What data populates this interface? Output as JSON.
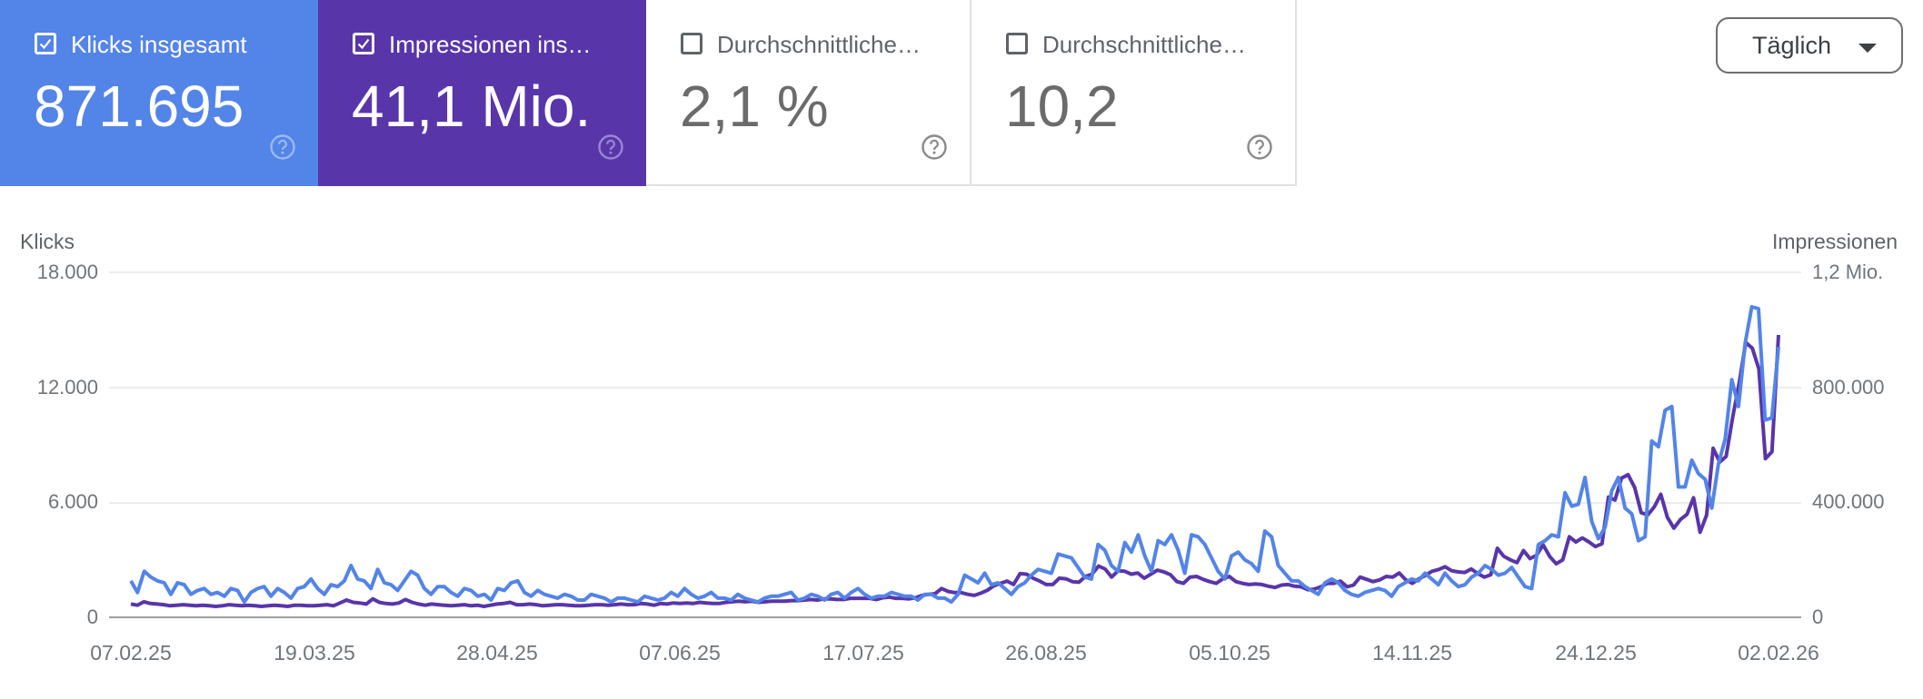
{
  "cards": [
    {
      "label": "Klicks insgesamt",
      "value": "871.695",
      "checked": true,
      "color": "#5384e8",
      "help_icon": "help-circle-icon"
    },
    {
      "label": "Impressionen ins…",
      "value": "41,1 Mio.",
      "checked": true,
      "color": "#5935aa",
      "help_icon": "help-circle-icon"
    },
    {
      "label": "Durchschnittliche…",
      "value": "2,1 %",
      "checked": false,
      "color": "#ffffff",
      "help_icon": "help-circle-icon"
    },
    {
      "label": "Durchschnittliche…",
      "value": "10,2",
      "checked": false,
      "color": "#ffffff",
      "help_icon": "help-circle-icon"
    }
  ],
  "granularity_dropdown": {
    "selected": "Täglich",
    "icon": "caret-down-icon"
  },
  "chart_data": {
    "type": "line",
    "title": "",
    "xlabel": "",
    "ylabel": "Klicks",
    "ylabel_right": "Impressionen",
    "ylim": [
      0,
      18000
    ],
    "ylim_right": [
      0,
      1200000
    ],
    "yticks": [
      "0",
      "6.000",
      "12.000",
      "18.000"
    ],
    "yticks_right": [
      "0",
      "400.000",
      "800.000",
      "1,2 Mio."
    ],
    "x_tick_labels": [
      "07.02.25",
      "19.03.25",
      "28.04.25",
      "07.06.25",
      "17.07.25",
      "26.08.25",
      "05.10.25",
      "14.11.25",
      "24.12.25",
      "02.02.26"
    ],
    "grid": true,
    "legend": "cards above chart",
    "series": [
      {
        "name": "Klicks",
        "axis": "left",
        "color": "#5384e8",
        "values": [
          1900,
          1300,
          2400,
          2100,
          1900,
          1800,
          1200,
          1800,
          1700,
          1200,
          1400,
          1500,
          1200,
          1300,
          1100,
          1500,
          1400,
          800,
          1300,
          1500,
          1600,
          1100,
          1500,
          1300,
          1000,
          1500,
          1600,
          2000,
          1500,
          1200,
          1700,
          1600,
          1900,
          2700,
          2000,
          1900,
          1500,
          2500,
          1800,
          1700,
          1400,
          1900,
          2400,
          2200,
          1500,
          1200,
          1600,
          1600,
          1300,
          1100,
          1500,
          1400,
          1100,
          1200,
          900,
          1500,
          1400,
          1800,
          1900,
          1300,
          1100,
          1400,
          1200,
          1100,
          1000,
          1200,
          1100,
          900,
          900,
          1200,
          1100,
          1000,
          800,
          1000,
          1000,
          900,
          800,
          1100,
          1000,
          900,
          1000,
          1300,
          1100,
          1500,
          1200,
          1000,
          1100,
          1300,
          1000,
          1000,
          900,
          1200,
          1000,
          900,
          800,
          1000,
          1100,
          1100,
          1200,
          1300,
          900,
          1000,
          1200,
          1100,
          900,
          1200,
          1300,
          1000,
          1300,
          1500,
          1200,
          1000,
          1100,
          1100,
          1300,
          1200,
          1100,
          1100,
          900,
          1200,
          1200,
          1000,
          1000,
          800,
          1200,
          2200,
          2000,
          1800,
          2300,
          1700,
          1800,
          1500,
          1200,
          1600,
          1800,
          2200,
          2500,
          2400,
          2300,
          3300,
          3200,
          3100,
          2600,
          2100,
          2000,
          3800,
          3500,
          2700,
          2400,
          3900,
          3400,
          4300,
          3200,
          2400,
          4000,
          3800,
          4300,
          3500,
          2300,
          4300,
          4200,
          3800,
          3100,
          2400,
          2000,
          3200,
          3400,
          3000,
          2800,
          2400,
          4500,
          4200,
          2700,
          2300,
          1900,
          1900,
          1600,
          1400,
          1200,
          1800,
          2000,
          1800,
          1400,
          1200,
          1100,
          1300,
          1400,
          1500,
          1400,
          1100,
          1600,
          1800,
          2000,
          1900,
          2300,
          2000,
          1700,
          2300,
          1900,
          1600,
          1700,
          2100,
          2300,
          2700,
          2500,
          2200,
          2300,
          2600,
          2100,
          1600,
          1500,
          3800,
          4000,
          4300,
          4200,
          6500,
          5800,
          5900,
          7300,
          5000,
          4100,
          4700,
          6600,
          7300,
          5700,
          5400,
          4000,
          4200,
          9200,
          8900,
          10800,
          11000,
          6800,
          6800,
          8200,
          7500,
          7200,
          5700,
          8000,
          9300,
          12400,
          11000,
          14300,
          16200,
          16100,
          10300,
          10400,
          14100
        ]
      },
      {
        "name": "Impressionen",
        "axis": "right",
        "color": "#5935aa",
        "values": [
          46000,
          42000,
          54000,
          48000,
          46000,
          44000,
          40000,
          42000,
          44000,
          42000,
          40000,
          42000,
          40000,
          38000,
          40000,
          44000,
          42000,
          40000,
          42000,
          40000,
          38000,
          40000,
          42000,
          40000,
          38000,
          42000,
          42000,
          40000,
          40000,
          42000,
          44000,
          40000,
          50000,
          60000,
          52000,
          50000,
          46000,
          64000,
          52000,
          48000,
          46000,
          50000,
          62000,
          52000,
          46000,
          42000,
          46000,
          44000,
          42000,
          40000,
          42000,
          44000,
          40000,
          42000,
          38000,
          42000,
          46000,
          48000,
          52000,
          44000,
          44000,
          46000,
          44000,
          40000,
          42000,
          44000,
          44000,
          42000,
          40000,
          40000,
          42000,
          44000,
          44000,
          42000,
          44000,
          46000,
          44000,
          44000,
          48000,
          46000,
          42000,
          48000,
          46000,
          50000,
          48000,
          50000,
          48000,
          52000,
          50000,
          48000,
          48000,
          52000,
          54000,
          56000,
          54000,
          56000,
          52000,
          54000,
          56000,
          56000,
          56000,
          58000,
          58000,
          60000,
          62000,
          60000,
          64000,
          64000,
          62000,
          62000,
          66000,
          66000,
          66000,
          66000,
          62000,
          68000,
          70000,
          66000,
          66000,
          64000,
          68000,
          76000,
          80000,
          82000,
          100000,
          90000,
          86000,
          86000,
          80000,
          76000,
          84000,
          94000,
          110000,
          118000,
          126000,
          114000,
          152000,
          150000,
          136000,
          126000,
          114000,
          114000,
          136000,
          134000,
          124000,
          122000,
          142000,
          150000,
          178000,
          168000,
          140000,
          162000,
          160000,
          150000,
          154000,
          136000,
          150000,
          164000,
          158000,
          148000,
          124000,
          118000,
          140000,
          142000,
          132000,
          124000,
          118000,
          134000,
          142000,
          124000,
          118000,
          114000,
          116000,
          114000,
          108000,
          104000,
          112000,
          114000,
          108000,
          106000,
          96000,
          98000,
          106000,
          118000,
          118000,
          126000,
          106000,
          112000,
          140000,
          132000,
          124000,
          130000,
          142000,
          140000,
          154000,
          130000,
          118000,
          134000,
          146000,
          160000,
          166000,
          176000,
          162000,
          158000,
          156000,
          168000,
          152000,
          140000,
          148000,
          240000,
          212000,
          200000,
          190000,
          232000,
          204000,
          216000,
          252000,
          212000,
          186000,
          200000,
          280000,
          262000,
          276000,
          262000,
          246000,
          256000,
          418000,
          408000,
          484000,
          496000,
          452000,
          364000,
          356000,
          384000,
          428000,
          348000,
          310000,
          340000,
          358000,
          416000,
          296000,
          356000,
          588000,
          540000,
          560000,
          696000,
          816000,
          956000,
          936000,
          864000,
          552000,
          576000,
          982000
        ]
      }
    ]
  }
}
